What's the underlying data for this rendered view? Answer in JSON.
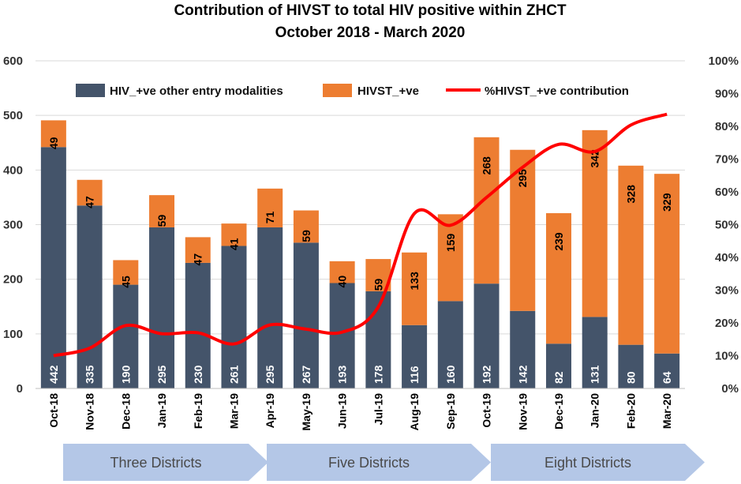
{
  "chart_data": {
    "type": "bar",
    "stacked": true,
    "title": "Contribution of HIVST to total HIV positive within ZHCT",
    "subtitle": "October 2018 - March 2020",
    "categories": [
      "Oct-18",
      "Nov-18",
      "Dec-18",
      "Jan-19",
      "Feb-19",
      "Mar-19",
      "Apr-19",
      "May-19",
      "Jun-19",
      "Jul-19",
      "Aug-19",
      "Sep-19",
      "Oct-19",
      "Nov-19",
      "Dec-19",
      "Jan-20",
      "Feb-20",
      "Mar-20"
    ],
    "series": [
      {
        "name": "HIV_+ve other entry modalities",
        "type": "bar",
        "color": "#44546a",
        "values": [
          442,
          335,
          190,
          295,
          230,
          261,
          295,
          267,
          193,
          178,
          116,
          160,
          192,
          142,
          82,
          131,
          80,
          64
        ]
      },
      {
        "name": "HIVST_+ve",
        "type": "bar",
        "color": "#ed7d31",
        "values": [
          49,
          47,
          45,
          59,
          47,
          41,
          71,
          59,
          40,
          59,
          133,
          159,
          268,
          295,
          239,
          342,
          328,
          329
        ]
      },
      {
        "name": "%HIVST_+ve contribution",
        "type": "line",
        "axis": "right",
        "color": "#ff0000",
        "values": [
          10,
          12.3,
          19.2,
          16.7,
          17.0,
          13.6,
          19.4,
          18.1,
          17.2,
          24.9,
          53.4,
          49.8,
          58.3,
          67.5,
          74.5,
          72.3,
          80.4,
          83.7
        ]
      }
    ],
    "ylim": [
      0,
      600
    ],
    "yticks": [
      "0",
      "100",
      "200",
      "300",
      "400",
      "500",
      "600"
    ],
    "y2lim": [
      0,
      100
    ],
    "y2ticks": [
      "0%",
      "10%",
      "20%",
      "30%",
      "40%",
      "50%",
      "60%",
      "70%",
      "80%",
      "90%",
      "100%"
    ],
    "legend_position": "top",
    "districts": [
      {
        "label": "Three Districts",
        "from": 0,
        "to": 5
      },
      {
        "label": "Five Districts",
        "from": 6,
        "to": 11
      },
      {
        "label": "Eight Districts",
        "from": 12,
        "to": 17
      }
    ],
    "district_color": "#b4c7e7"
  }
}
